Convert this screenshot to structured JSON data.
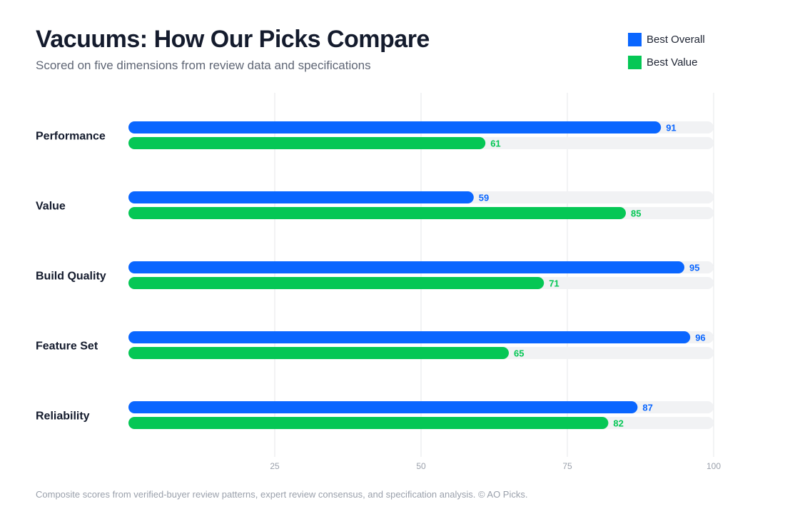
{
  "header": {
    "title": "Vacuums: How Our Picks Compare",
    "subtitle": "Scored on five dimensions from review data and specifications"
  },
  "legend": [
    {
      "label": "Best Overall",
      "color": "#0a66ff"
    },
    {
      "label": "Best Value",
      "color": "#05c755"
    }
  ],
  "footer": {
    "note": "Composite scores from verified-buyer review patterns, expert review consensus, and specification analysis. © AO Picks."
  },
  "chart_data": {
    "type": "bar",
    "orientation": "horizontal",
    "title": "Vacuums: How Our Picks Compare",
    "subtitle": "Scored on five dimensions from review data and specifications",
    "categories": [
      "Performance",
      "Value",
      "Build Quality",
      "Feature Set",
      "Reliability"
    ],
    "series": [
      {
        "name": "Best Overall",
        "color": "#0a66ff",
        "values": [
          91,
          59,
          95,
          96,
          87
        ]
      },
      {
        "name": "Best Value",
        "color": "#05c755",
        "values": [
          61,
          85,
          71,
          65,
          82
        ]
      }
    ],
    "xlim": [
      0,
      100
    ],
    "xticks": [
      25,
      50,
      75,
      100
    ],
    "track_color": "#f1f2f4",
    "grid": true,
    "data_labels": true,
    "legend_position": "top-right"
  }
}
